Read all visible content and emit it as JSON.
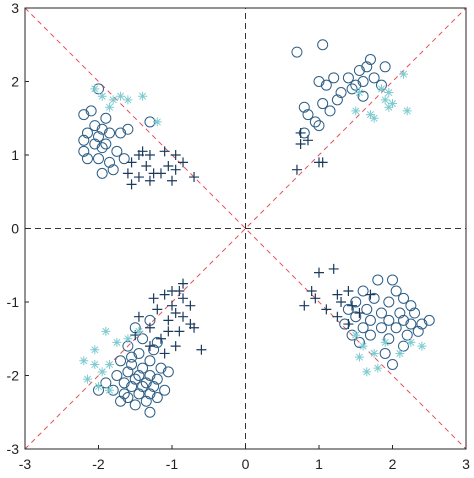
{
  "chart_data": {
    "type": "scatter",
    "title": "",
    "xlabel": "",
    "ylabel": "",
    "xlim": [
      -3,
      3
    ],
    "ylim": [
      -3,
      3
    ],
    "grid": false,
    "legend": "none",
    "x_ticks": [
      "-3",
      "-2",
      "-1",
      "0",
      "1",
      "2",
      "3"
    ],
    "y_ticks": [
      "-3",
      "-2",
      "-1",
      "0",
      "1",
      "2",
      "3"
    ],
    "reference_lines": [
      {
        "kind": "diagonal",
        "from": [
          -3,
          -3
        ],
        "to": [
          3,
          3
        ],
        "color": "#e8505b",
        "style": "dashed"
      },
      {
        "kind": "diagonal",
        "from": [
          -3,
          3
        ],
        "to": [
          3,
          -3
        ],
        "color": "#e8505b",
        "style": "dashed"
      },
      {
        "kind": "axis",
        "from": [
          -3,
          0
        ],
        "to": [
          3,
          0
        ],
        "color": "#333333",
        "style": "dashed"
      },
      {
        "kind": "axis",
        "from": [
          0,
          -3
        ],
        "to": [
          0,
          3
        ],
        "color": "#333333",
        "style": "dashed"
      }
    ],
    "series": [
      {
        "marker": "circle",
        "color": "#2e5f86",
        "points": [
          [
            -2.0,
            1.9
          ],
          [
            -2.1,
            1.6
          ],
          [
            -2.2,
            1.55
          ],
          [
            -1.9,
            1.5
          ],
          [
            -2.05,
            1.4
          ],
          [
            -1.95,
            1.35
          ],
          [
            -2.15,
            1.3
          ],
          [
            -2.0,
            1.25
          ],
          [
            -1.85,
            1.3
          ],
          [
            -2.2,
            1.2
          ],
          [
            -2.05,
            1.15
          ],
          [
            -1.9,
            1.15
          ],
          [
            -1.7,
            1.3
          ],
          [
            -1.95,
            1.1
          ],
          [
            -2.2,
            1.05
          ],
          [
            -1.6,
            1.35
          ],
          [
            -1.3,
            1.45
          ],
          [
            -2.0,
            0.95
          ],
          [
            -1.85,
            0.9
          ],
          [
            -2.15,
            0.95
          ],
          [
            -1.75,
            1.05
          ],
          [
            -1.65,
            0.95
          ],
          [
            -1.8,
            0.8
          ],
          [
            -1.95,
            0.75
          ],
          [
            1.05,
            2.5
          ],
          [
            0.7,
            2.4
          ],
          [
            1.7,
            2.3
          ],
          [
            1.65,
            2.2
          ],
          [
            1.55,
            2.15
          ],
          [
            1.9,
            2.2
          ],
          [
            1.75,
            2.05
          ],
          [
            1.4,
            2.05
          ],
          [
            1.6,
            2.0
          ],
          [
            1.0,
            2.0
          ],
          [
            1.2,
            2.05
          ],
          [
            1.1,
            1.95
          ],
          [
            1.5,
            1.95
          ],
          [
            1.3,
            1.85
          ],
          [
            1.45,
            1.9
          ],
          [
            1.85,
            1.95
          ],
          [
            1.6,
            1.8
          ],
          [
            1.25,
            1.75
          ],
          [
            1.05,
            1.7
          ],
          [
            1.15,
            1.6
          ],
          [
            0.8,
            1.65
          ],
          [
            0.85,
            1.55
          ],
          [
            0.95,
            1.45
          ],
          [
            1.0,
            1.4
          ],
          [
            0.8,
            1.3
          ],
          [
            1.8,
            -0.7
          ],
          [
            2.0,
            -0.7
          ],
          [
            1.6,
            -0.85
          ],
          [
            2.05,
            -0.85
          ],
          [
            1.75,
            -0.95
          ],
          [
            2.15,
            -0.95
          ],
          [
            1.5,
            -1.0
          ],
          [
            1.95,
            -1.0
          ],
          [
            2.25,
            -1.05
          ],
          [
            1.4,
            -1.1
          ],
          [
            1.65,
            -1.1
          ],
          [
            1.85,
            -1.15
          ],
          [
            2.1,
            -1.15
          ],
          [
            2.3,
            -1.15
          ],
          [
            1.5,
            -1.2
          ],
          [
            1.7,
            -1.25
          ],
          [
            1.95,
            -1.25
          ],
          [
            2.15,
            -1.25
          ],
          [
            1.35,
            -1.3
          ],
          [
            1.6,
            -1.35
          ],
          [
            1.85,
            -1.35
          ],
          [
            2.05,
            -1.35
          ],
          [
            2.25,
            -1.3
          ],
          [
            2.4,
            -1.3
          ],
          [
            1.45,
            -1.45
          ],
          [
            1.7,
            -1.45
          ],
          [
            1.95,
            -1.5
          ],
          [
            2.2,
            -1.45
          ],
          [
            2.35,
            -1.4
          ],
          [
            2.15,
            -1.6
          ],
          [
            1.9,
            -1.7
          ],
          [
            2.0,
            -1.85
          ],
          [
            2.5,
            -1.25
          ],
          [
            1.55,
            -1.55
          ],
          [
            -1.3,
            -1.25
          ],
          [
            -1.5,
            -1.35
          ],
          [
            -1.4,
            -1.5
          ],
          [
            -1.6,
            -1.6
          ],
          [
            -1.2,
            -1.55
          ],
          [
            -1.45,
            -1.7
          ],
          [
            -1.3,
            -1.8
          ],
          [
            -1.7,
            -1.8
          ],
          [
            -1.55,
            -1.85
          ],
          [
            -1.4,
            -1.9
          ],
          [
            -1.15,
            -1.9
          ],
          [
            -1.6,
            -1.95
          ],
          [
            -1.45,
            -2.0
          ],
          [
            -1.3,
            -2.0
          ],
          [
            -1.75,
            -2.0
          ],
          [
            -1.5,
            -2.05
          ],
          [
            -1.35,
            -2.1
          ],
          [
            -1.2,
            -2.05
          ],
          [
            -1.65,
            -2.1
          ],
          [
            -1.55,
            -2.15
          ],
          [
            -1.4,
            -2.15
          ],
          [
            -1.25,
            -2.15
          ],
          [
            -1.8,
            -2.2
          ],
          [
            -1.45,
            -2.25
          ],
          [
            -1.3,
            -2.25
          ],
          [
            -1.6,
            -2.3
          ],
          [
            -1.2,
            -2.3
          ],
          [
            -1.35,
            -2.35
          ],
          [
            -1.5,
            -2.4
          ],
          [
            -1.3,
            -2.5
          ],
          [
            -1.9,
            -2.1
          ],
          [
            -2.0,
            -2.2
          ],
          [
            -1.1,
            -2.2
          ],
          [
            -1.05,
            -1.95
          ],
          [
            -1.7,
            -2.35
          ],
          [
            -1.55,
            -1.75
          ],
          [
            -1.25,
            -1.65
          ],
          [
            -1.65,
            -2.25
          ]
        ]
      },
      {
        "marker": "plus",
        "color": "#1b3a5c",
        "points": [
          [
            -1.45,
            1.0
          ],
          [
            -1.4,
            1.05
          ],
          [
            -1.3,
            1.0
          ],
          [
            -1.1,
            1.05
          ],
          [
            -0.95,
            1.0
          ],
          [
            -0.85,
            0.9
          ],
          [
            -1.55,
            0.9
          ],
          [
            -1.35,
            0.85
          ],
          [
            -1.05,
            0.85
          ],
          [
            -1.25,
            0.75
          ],
          [
            -1.45,
            0.7
          ],
          [
            -1.6,
            0.75
          ],
          [
            -1.15,
            0.75
          ],
          [
            -0.95,
            0.8
          ],
          [
            -0.7,
            0.7
          ],
          [
            -1.55,
            0.6
          ],
          [
            -1.3,
            0.65
          ],
          [
            -1.0,
            0.65
          ],
          [
            0.75,
            1.3
          ],
          [
            0.85,
            1.2
          ],
          [
            0.75,
            1.15
          ],
          [
            1.0,
            0.9
          ],
          [
            1.05,
            0.9
          ],
          [
            0.7,
            0.8
          ],
          [
            1.0,
            -0.6
          ],
          [
            1.2,
            -0.55
          ],
          [
            0.9,
            -0.85
          ],
          [
            1.25,
            -0.9
          ],
          [
            1.4,
            -0.85
          ],
          [
            1.7,
            -0.9
          ],
          [
            0.95,
            -0.95
          ],
          [
            1.3,
            -1.0
          ],
          [
            1.45,
            -1.05
          ],
          [
            0.8,
            -1.05
          ],
          [
            1.1,
            -1.1
          ],
          [
            1.25,
            -1.2
          ],
          [
            1.55,
            -1.15
          ],
          [
            1.4,
            -1.3
          ],
          [
            -0.85,
            -0.75
          ],
          [
            -1.0,
            -0.85
          ],
          [
            -0.9,
            -0.85
          ],
          [
            -1.1,
            -0.9
          ],
          [
            -0.85,
            -0.95
          ],
          [
            -1.25,
            -0.95
          ],
          [
            -1.0,
            -1.05
          ],
          [
            -0.75,
            -1.05
          ],
          [
            -1.2,
            -1.1
          ],
          [
            -0.95,
            -1.15
          ],
          [
            -1.45,
            -1.2
          ],
          [
            -1.05,
            -1.25
          ],
          [
            -0.75,
            -1.3
          ],
          [
            -1.3,
            -1.35
          ],
          [
            -1.05,
            -1.4
          ],
          [
            -0.9,
            -1.4
          ],
          [
            -1.15,
            -1.5
          ],
          [
            -0.95,
            -1.6
          ],
          [
            -1.3,
            -1.6
          ],
          [
            -0.6,
            -1.65
          ],
          [
            -1.1,
            -1.7
          ],
          [
            -0.7,
            -1.35
          ],
          [
            -1.5,
            -1.45
          ],
          [
            -0.85,
            -1.2
          ]
        ]
      },
      {
        "marker": "asterisk",
        "color": "#7ecbd0",
        "points": [
          [
            -1.95,
            1.8
          ],
          [
            -2.05,
            1.9
          ],
          [
            -1.8,
            1.75
          ],
          [
            -1.7,
            1.8
          ],
          [
            -1.6,
            1.75
          ],
          [
            -1.4,
            1.8
          ],
          [
            -1.85,
            1.65
          ],
          [
            -1.2,
            1.45
          ],
          [
            1.55,
            1.85
          ],
          [
            1.85,
            1.9
          ],
          [
            1.9,
            1.75
          ],
          [
            1.75,
            1.5
          ],
          [
            1.95,
            1.65
          ],
          [
            2.15,
            2.1
          ],
          [
            1.95,
            1.85
          ],
          [
            2.2,
            1.6
          ],
          [
            1.7,
            1.55
          ],
          [
            2.0,
            1.7
          ],
          [
            1.5,
            1.6
          ],
          [
            1.6,
            -1.6
          ],
          [
            1.75,
            -1.7
          ],
          [
            1.55,
            -1.75
          ],
          [
            1.8,
            -1.9
          ],
          [
            1.65,
            -1.95
          ],
          [
            2.1,
            -1.7
          ],
          [
            2.4,
            -1.6
          ],
          [
            2.25,
            -1.55
          ],
          [
            1.5,
            -1.45
          ],
          [
            1.9,
            -1.55
          ],
          [
            -1.9,
            -1.4
          ],
          [
            -2.05,
            -1.65
          ],
          [
            -2.2,
            -1.8
          ],
          [
            -1.85,
            -1.85
          ],
          [
            -1.95,
            -1.95
          ],
          [
            -2.15,
            -2.05
          ],
          [
            -2.0,
            -2.15
          ],
          [
            -1.75,
            -1.55
          ],
          [
            -2.05,
            -1.85
          ],
          [
            -1.85,
            -2.2
          ],
          [
            -1.6,
            -1.5
          ],
          [
            -1.45,
            -1.4
          ]
        ]
      }
    ]
  }
}
